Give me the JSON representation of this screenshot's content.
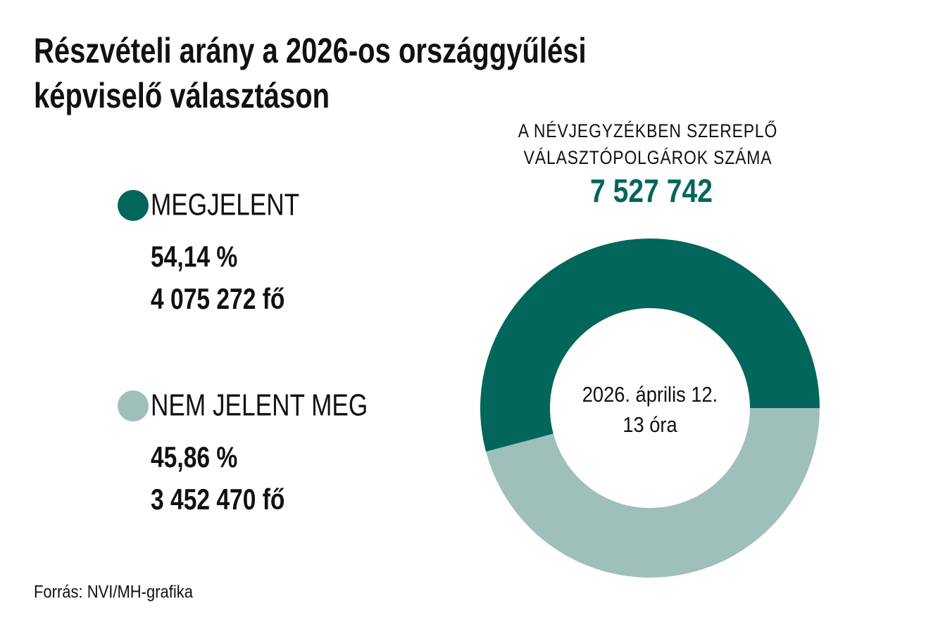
{
  "chart_data": {
    "type": "pie",
    "donut": true,
    "title": [
      "Részvételi arány a 2026-os országgyűlési",
      "képviselő választáson"
    ],
    "subtitle": [
      "A NÉVJEGYZÉKBEN  SZEREPLŐ",
      "VÁLASZTÓPOLGÁROK  SZÁMA"
    ],
    "total": 7527742,
    "total_label": "7 527 742",
    "categories": [
      "MEGJELENT",
      "NEM JELENT MEG"
    ],
    "values": [
      54.14,
      45.86
    ],
    "value_labels": [
      "54,14 %",
      "45,86 %"
    ],
    "counts": [
      4075272,
      3452470
    ],
    "count_labels": [
      "4 075 272 fő",
      "3 452 470 fő"
    ],
    "colors": [
      "#02665a",
      "#9fbfbb"
    ],
    "center_text": [
      "2026. április 12.",
      "13 óra"
    ],
    "source": "Forrás: NVI/MH-grafika"
  }
}
